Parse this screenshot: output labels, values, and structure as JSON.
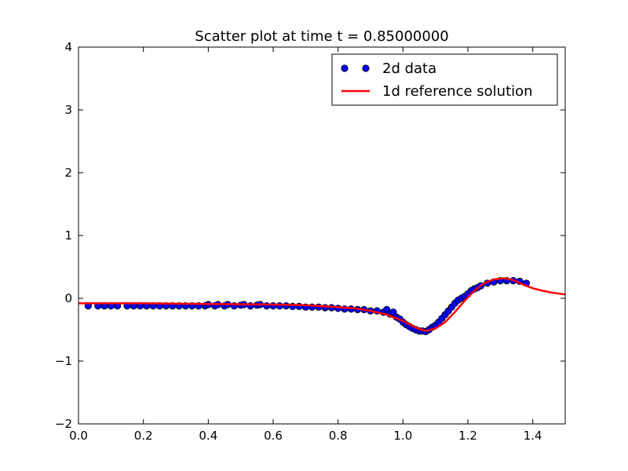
{
  "chart_data": {
    "type": "scatter",
    "title": "Scatter plot at time t =     0.85000000",
    "xlabel": "",
    "ylabel": "",
    "xlim": [
      0.0,
      1.5
    ],
    "ylim": [
      -2,
      4
    ],
    "xticks": [
      "0.0",
      "0.2",
      "0.4",
      "0.6",
      "0.8",
      "1.0",
      "1.2",
      "1.4"
    ],
    "xtick_values": [
      0.0,
      0.2,
      0.4,
      0.6,
      0.8,
      1.0,
      1.2,
      1.4
    ],
    "yticks": [
      "−2",
      "−1",
      "0",
      "1",
      "2",
      "3",
      "4"
    ],
    "ytick_values": [
      -2,
      -1,
      0,
      1,
      2,
      3,
      4
    ],
    "grid": false,
    "legend_position": "top-right",
    "legend": [
      {
        "label": "2d data",
        "type": "markers",
        "color": "#0000ff"
      },
      {
        "label": "1d reference solution",
        "type": "line",
        "color": "#ff0000"
      }
    ],
    "series": [
      {
        "name": "2d data",
        "kind": "scatter",
        "color": "#0000ff",
        "points": [
          [
            0.03,
            -0.12
          ],
          [
            0.06,
            -0.12
          ],
          [
            0.08,
            -0.12
          ],
          [
            0.1,
            -0.12
          ],
          [
            0.12,
            -0.12
          ],
          [
            0.15,
            -0.12
          ],
          [
            0.17,
            -0.12
          ],
          [
            0.19,
            -0.12
          ],
          [
            0.21,
            -0.12
          ],
          [
            0.23,
            -0.12
          ],
          [
            0.25,
            -0.12
          ],
          [
            0.27,
            -0.12
          ],
          [
            0.29,
            -0.12
          ],
          [
            0.31,
            -0.12
          ],
          [
            0.33,
            -0.12
          ],
          [
            0.35,
            -0.12
          ],
          [
            0.37,
            -0.12
          ],
          [
            0.39,
            -0.12
          ],
          [
            0.4,
            -0.1
          ],
          [
            0.42,
            -0.12
          ],
          [
            0.43,
            -0.1
          ],
          [
            0.45,
            -0.12
          ],
          [
            0.46,
            -0.1
          ],
          [
            0.48,
            -0.12
          ],
          [
            0.5,
            -0.11
          ],
          [
            0.51,
            -0.1
          ],
          [
            0.53,
            -0.12
          ],
          [
            0.55,
            -0.11
          ],
          [
            0.56,
            -0.1
          ],
          [
            0.58,
            -0.12
          ],
          [
            0.6,
            -0.12
          ],
          [
            0.62,
            -0.12
          ],
          [
            0.64,
            -0.12
          ],
          [
            0.66,
            -0.13
          ],
          [
            0.68,
            -0.13
          ],
          [
            0.7,
            -0.14
          ],
          [
            0.72,
            -0.14
          ],
          [
            0.74,
            -0.14
          ],
          [
            0.76,
            -0.15
          ],
          [
            0.78,
            -0.15
          ],
          [
            0.8,
            -0.16
          ],
          [
            0.82,
            -0.17
          ],
          [
            0.84,
            -0.17
          ],
          [
            0.86,
            -0.18
          ],
          [
            0.88,
            -0.18
          ],
          [
            0.9,
            -0.2
          ],
          [
            0.92,
            -0.2
          ],
          [
            0.94,
            -0.22
          ],
          [
            0.95,
            -0.18
          ],
          [
            0.96,
            -0.25
          ],
          [
            0.97,
            -0.22
          ],
          [
            0.98,
            -0.3
          ],
          [
            0.99,
            -0.33
          ],
          [
            1.0,
            -0.38
          ],
          [
            1.01,
            -0.42
          ],
          [
            1.02,
            -0.45
          ],
          [
            1.03,
            -0.48
          ],
          [
            1.04,
            -0.5
          ],
          [
            1.05,
            -0.52
          ],
          [
            1.06,
            -0.52
          ],
          [
            1.07,
            -0.53
          ],
          [
            1.08,
            -0.5
          ],
          [
            1.09,
            -0.46
          ],
          [
            1.1,
            -0.43
          ],
          [
            1.11,
            -0.38
          ],
          [
            1.12,
            -0.32
          ],
          [
            1.13,
            -0.26
          ],
          [
            1.14,
            -0.2
          ],
          [
            1.15,
            -0.14
          ],
          [
            1.16,
            -0.08
          ],
          [
            1.17,
            -0.03
          ],
          [
            1.18,
            0.0
          ],
          [
            1.19,
            0.03
          ],
          [
            1.2,
            0.07
          ],
          [
            1.21,
            0.12
          ],
          [
            1.22,
            0.15
          ],
          [
            1.23,
            0.17
          ],
          [
            1.24,
            0.2
          ],
          [
            1.26,
            0.24
          ],
          [
            1.28,
            0.26
          ],
          [
            1.3,
            0.28
          ],
          [
            1.32,
            0.28
          ],
          [
            1.34,
            0.28
          ],
          [
            1.36,
            0.27
          ],
          [
            1.38,
            0.24
          ]
        ]
      },
      {
        "name": "1d reference solution",
        "kind": "line",
        "color": "#ff0000",
        "points": [
          [
            0.0,
            -0.08
          ],
          [
            0.2,
            -0.08
          ],
          [
            0.4,
            -0.09
          ],
          [
            0.6,
            -0.1
          ],
          [
            0.7,
            -0.11
          ],
          [
            0.8,
            -0.14
          ],
          [
            0.85,
            -0.16
          ],
          [
            0.9,
            -0.2
          ],
          [
            0.95,
            -0.26
          ],
          [
            1.0,
            -0.36
          ],
          [
            1.04,
            -0.47
          ],
          [
            1.07,
            -0.52
          ],
          [
            1.1,
            -0.48
          ],
          [
            1.13,
            -0.38
          ],
          [
            1.16,
            -0.22
          ],
          [
            1.19,
            -0.04
          ],
          [
            1.22,
            0.12
          ],
          [
            1.25,
            0.24
          ],
          [
            1.28,
            0.3
          ],
          [
            1.31,
            0.32
          ],
          [
            1.34,
            0.29
          ],
          [
            1.37,
            0.22
          ],
          [
            1.4,
            0.16
          ],
          [
            1.43,
            0.12
          ],
          [
            1.46,
            0.09
          ],
          [
            1.5,
            0.06
          ]
        ]
      }
    ]
  }
}
